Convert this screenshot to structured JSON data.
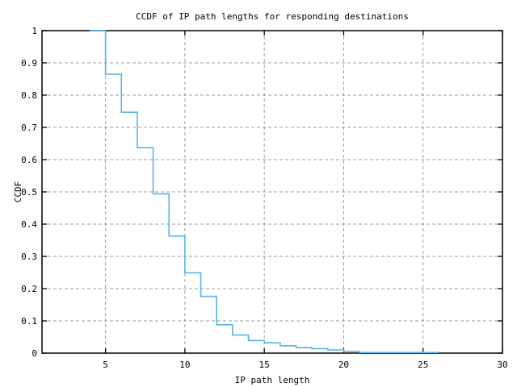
{
  "window": {
    "background": "#ffffff"
  },
  "chart_data": {
    "type": "line",
    "subtype": "ccdf-step-function",
    "title": "CCDF of IP path lengths for responding destinations",
    "xlabel": "IP path length",
    "ylabel": "CCDF",
    "xlim": [
      1,
      30
    ],
    "ylim": [
      0,
      1
    ],
    "grid": true,
    "legend_position": "none",
    "xticks": {
      "values": [
        5,
        10,
        15,
        20,
        25,
        30
      ],
      "labels": [
        "5",
        "10",
        "15",
        "20",
        "25",
        "30"
      ]
    },
    "yticks": {
      "values": [
        0,
        0.1,
        0.2,
        0.3,
        0.4,
        0.5,
        0.6,
        0.7,
        0.8,
        0.9,
        1
      ],
      "labels": [
        "0",
        "0.1",
        "0.2",
        "0.3",
        "0.4",
        "0.5",
        "0.6",
        "0.7",
        "0.8",
        "0.9",
        "1"
      ]
    },
    "series": [
      {
        "name": "ccdf",
        "style": "steps",
        "color": "#56b4e9",
        "x": [
          4,
          5,
          6,
          7,
          8,
          9,
          10,
          11,
          12,
          13,
          14,
          15,
          16,
          17,
          18,
          19,
          20,
          21,
          22,
          23,
          24,
          25,
          26
        ],
        "y": [
          1.0,
          0.865,
          0.747,
          0.637,
          0.494,
          0.363,
          0.249,
          0.176,
          0.088,
          0.056,
          0.039,
          0.032,
          0.023,
          0.017,
          0.014,
          0.01,
          0.005,
          0.002,
          0.002,
          0.002,
          0.002,
          0.002,
          0.002
        ]
      }
    ],
    "colors": {
      "line": "#56b4e9",
      "grid": "#9e9e9e",
      "axis": "#000000",
      "text": "#000000",
      "background": "#ffffff"
    }
  }
}
